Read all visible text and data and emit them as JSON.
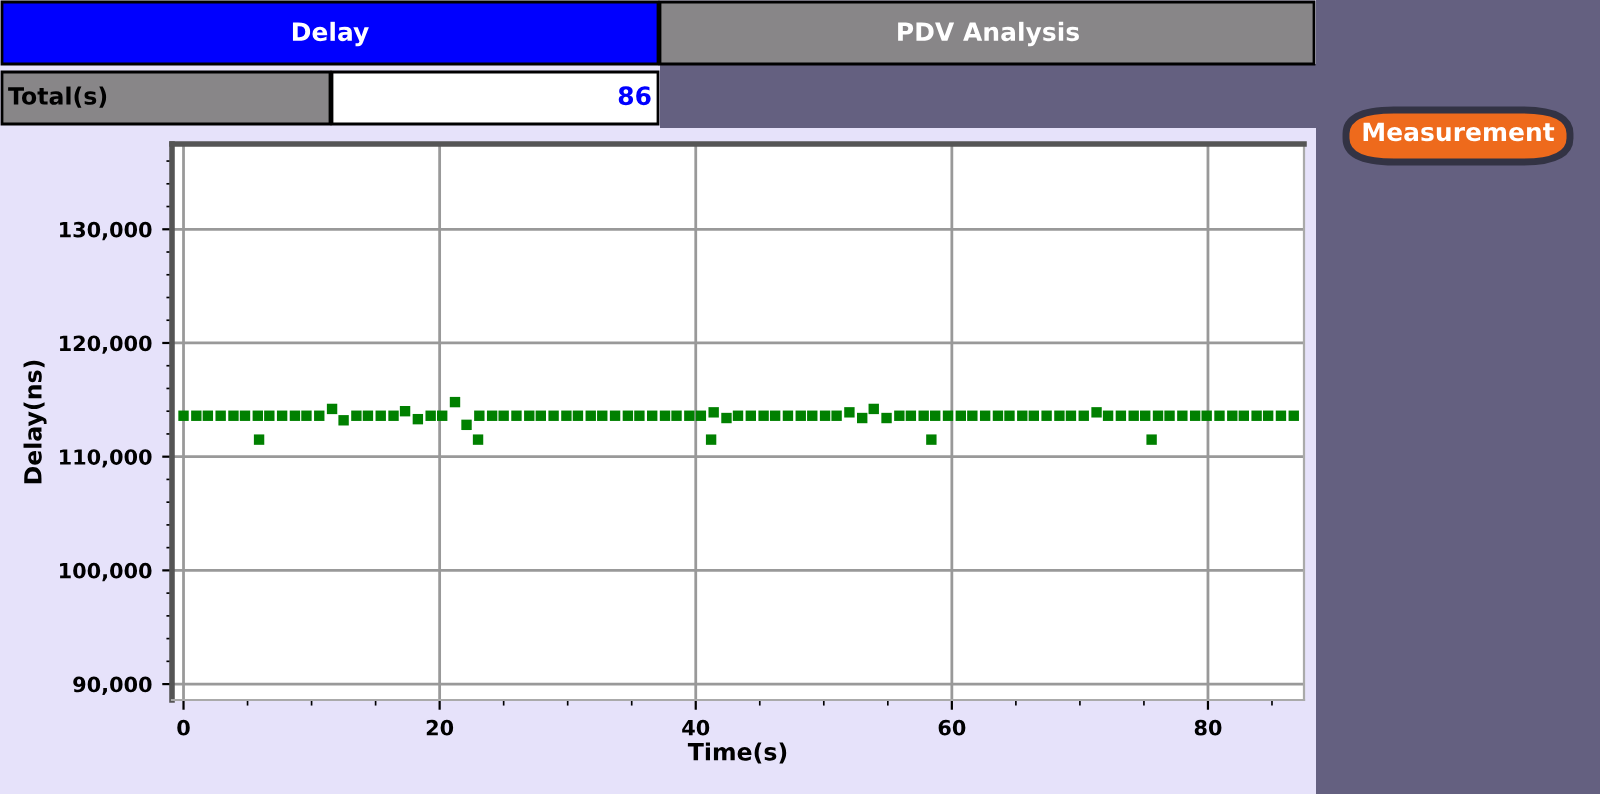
{
  "chart_data": {
    "type": "scatter",
    "xlabel": "Time(s)",
    "ylabel": "Delay(ns)",
    "annotations": [
      "Delay",
      "PDV Analysis",
      "Total(s)",
      "86",
      "Measurement"
    ],
    "xlim": [
      -0.9,
      87.5
    ],
    "ylim": [
      88600,
      137500
    ],
    "xticks": [
      0,
      20,
      40,
      60,
      80
    ],
    "yticks": [
      {
        "value": 90000,
        "label": "90,000"
      },
      {
        "value": 100000,
        "label": "100,000"
      },
      {
        "value": 110000,
        "label": "110,000"
      },
      {
        "value": 120000,
        "label": "120,000"
      },
      {
        "value": 130000,
        "label": "130,000"
      }
    ],
    "grid": true,
    "marker": "square",
    "legend": false,
    "series": [
      {
        "color": "#008000",
        "x": [
          0,
          1.0,
          1.9,
          2.9,
          3.9,
          4.8,
          5.8,
          6.7,
          7.7,
          8.7,
          9.6,
          10.6,
          11.6,
          12.5,
          13.5,
          14.4,
          15.4,
          16.4,
          17.3,
          18.3,
          19.3,
          20.2,
          21.2,
          22.1,
          23.1,
          24.1,
          25.0,
          26.0,
          27.0,
          27.9,
          28.9,
          29.9,
          30.8,
          31.8,
          32.7,
          33.7,
          34.7,
          35.6,
          36.6,
          37.6,
          38.5,
          39.5,
          40.4,
          41.4,
          42.4,
          43.3,
          44.3,
          45.3,
          46.2,
          47.2,
          48.2,
          49.1,
          50.1,
          51.0,
          52.0,
          53.0,
          53.9,
          54.9,
          55.9,
          56.8,
          57.8,
          58.7,
          59.7,
          60.7,
          61.6,
          62.6,
          63.6,
          64.5,
          65.5,
          66.4,
          67.4,
          68.4,
          69.3,
          70.3,
          71.3,
          72.2,
          73.2,
          74.2,
          75.1,
          76.1,
          77.0,
          78.0,
          79.0,
          79.9,
          80.9,
          81.9,
          82.8,
          83.8,
          84.7,
          85.7,
          86.7,
          5.9,
          23.0,
          41.2,
          58.4,
          75.6
        ],
        "values": [
          113600,
          113600,
          113600,
          113600,
          113600,
          113600,
          113600,
          113600,
          113600,
          113600,
          113600,
          113600,
          114200,
          113200,
          113600,
          113600,
          113600,
          113600,
          114000,
          113300,
          113600,
          113600,
          114800,
          112800,
          113600,
          113600,
          113600,
          113600,
          113600,
          113600,
          113600,
          113600,
          113600,
          113600,
          113600,
          113600,
          113600,
          113600,
          113600,
          113600,
          113600,
          113600,
          113600,
          113900,
          113400,
          113600,
          113600,
          113600,
          113600,
          113600,
          113600,
          113600,
          113600,
          113600,
          113900,
          113400,
          114200,
          113400,
          113600,
          113600,
          113600,
          113600,
          113600,
          113600,
          113600,
          113600,
          113600,
          113600,
          113600,
          113600,
          113600,
          113600,
          113600,
          113600,
          113900,
          113600,
          113600,
          113600,
          113600,
          113600,
          113600,
          113600,
          113600,
          113600,
          113600,
          113600,
          113600,
          113600,
          113600,
          113600,
          113600,
          111500,
          111500,
          111500,
          111500,
          111500
        ]
      }
    ]
  }
}
